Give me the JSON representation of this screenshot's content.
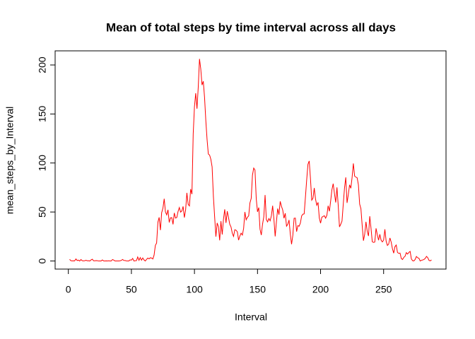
{
  "chart_data": {
    "type": "line",
    "title": "Mean of total steps by time interval across all days",
    "x_label": "Interval",
    "y_label": "mean_steps_by_Interval",
    "color": "#ff0000",
    "x": [
      1,
      2,
      3,
      4,
      5,
      6,
      7,
      8,
      9,
      10,
      11,
      12,
      13,
      14,
      15,
      16,
      17,
      18,
      19,
      20,
      21,
      22,
      23,
      24,
      25,
      26,
      27,
      28,
      29,
      30,
      31,
      32,
      33,
      34,
      35,
      36,
      37,
      38,
      39,
      40,
      41,
      42,
      43,
      44,
      45,
      46,
      47,
      48,
      49,
      50,
      51,
      52,
      53,
      54,
      55,
      56,
      57,
      58,
      59,
      60,
      61,
      62,
      63,
      64,
      65,
      66,
      67,
      68,
      69,
      70,
      71,
      72,
      73,
      74,
      75,
      76,
      77,
      78,
      79,
      80,
      81,
      82,
      83,
      84,
      85,
      86,
      87,
      88,
      89,
      90,
      91,
      92,
      93,
      94,
      95,
      96,
      97,
      98,
      99,
      100,
      101,
      102,
      103,
      104,
      105,
      106,
      107,
      108,
      109,
      110,
      111,
      112,
      113,
      114,
      115,
      116,
      117,
      118,
      119,
      120,
      121,
      122,
      123,
      124,
      125,
      126,
      127,
      128,
      129,
      130,
      131,
      132,
      133,
      134,
      135,
      136,
      137,
      138,
      139,
      140,
      141,
      142,
      143,
      144,
      145,
      146,
      147,
      148,
      149,
      150,
      151,
      152,
      153,
      154,
      155,
      156,
      157,
      158,
      159,
      160,
      161,
      162,
      163,
      164,
      165,
      166,
      167,
      168,
      169,
      170,
      171,
      172,
      173,
      174,
      175,
      176,
      177,
      178,
      179,
      180,
      181,
      182,
      183,
      184,
      185,
      186,
      187,
      188,
      189,
      190,
      191,
      192,
      193,
      194,
      195,
      196,
      197,
      198,
      199,
      200,
      201,
      202,
      203,
      204,
      205,
      206,
      207,
      208,
      209,
      210,
      211,
      212,
      213,
      214,
      215,
      216,
      217,
      218,
      219,
      220,
      221,
      222,
      223,
      224,
      225,
      226,
      227,
      228,
      229,
      230,
      231,
      232,
      233,
      234,
      235,
      236,
      237,
      238,
      239,
      240,
      241,
      242,
      243,
      244,
      245,
      246,
      247,
      248,
      249,
      250,
      251,
      252,
      253,
      254,
      255,
      256,
      257,
      258,
      259,
      260,
      261,
      262,
      263,
      264,
      265,
      266,
      267,
      268,
      269,
      270,
      271,
      272,
      273,
      274,
      275,
      276,
      277,
      278,
      279,
      280,
      281,
      282,
      283,
      284,
      285,
      286,
      287,
      288
    ],
    "values": [
      1.7,
      0.3,
      0.1,
      0.2,
      0.1,
      2.1,
      0.5,
      0.9,
      0,
      1.5,
      0.3,
      0.1,
      0.3,
      0.7,
      0.2,
      0.3,
      0,
      1.1,
      1.8,
      0.2,
      0.2,
      0.4,
      0.3,
      0,
      0,
      0,
      1.1,
      0,
      0,
      0.1,
      0,
      0.2,
      0,
      0,
      1.5,
      0.9,
      0,
      0,
      0,
      0,
      0.2,
      0.6,
      1.6,
      0.6,
      0.5,
      0.1,
      0,
      0,
      1.2,
      0.9,
      2.6,
      0,
      0.3,
      0.4,
      4.1,
      0.7,
      3.5,
      0.8,
      3.1,
      1.1,
      0,
      1.6,
      3,
      2.2,
      3.3,
      3,
      2.1,
      6.1,
      16,
      18.3,
      39.5,
      44.5,
      31.5,
      49.3,
      53.8,
      63.5,
      50,
      47.1,
      52.2,
      39.3,
      44,
      44.2,
      37.4,
      49,
      43.8,
      44.4,
      50.5,
      54.5,
      49.9,
      51,
      55.7,
      44.3,
      52.3,
      69.5,
      57.8,
      56.2,
      73.4,
      68.2,
      129.4,
      157.5,
      171.2,
      155.4,
      177.3,
      206.2,
      195.9,
      179.6,
      183.4,
      167,
      143.5,
      124,
      109.1,
      108.1,
      103.7,
      96,
      66.2,
      45.2,
      24.8,
      38.8,
      35,
      21.1,
      40.6,
      27,
      42.4,
      52.7,
      38.9,
      50.8,
      44.3,
      37.4,
      34.7,
      28.3,
      25.1,
      31.9,
      31.4,
      29.7,
      21.3,
      25.5,
      28.4,
      26.5,
      33.4,
      50,
      42,
      44.6,
      46,
      59.2,
      63.9,
      87.7,
      94.8,
      92.8,
      63.4,
      50.2,
      54.5,
      32.4,
      26.5,
      37.7,
      45.1,
      67.3,
      42.3,
      39.9,
      43.3,
      41,
      46.2,
      56.4,
      42.8,
      25.1,
      40,
      53.5,
      47.3,
      60.8,
      55.8,
      52,
      43.6,
      48.7,
      35.5,
      37.5,
      41.8,
      27.5,
      17.1,
      26.1,
      43.6,
      43.8,
      30,
      36.1,
      35.5,
      38.8,
      46,
      47.8,
      48.1,
      65.3,
      82.9,
      98.7,
      102.1,
      84,
      62.1,
      64.1,
      74.5,
      63.2,
      56.9,
      59.8,
      43.9,
      38.6,
      44.7,
      45.5,
      46.2,
      43.7,
      46.6,
      56.3,
      50.7,
      61.2,
      72.7,
      78.9,
      68.9,
      59.7,
      75.1,
      56.5,
      34.8,
      37.5,
      40.7,
      58,
      74.7,
      85.3,
      59.3,
      67.8,
      77.7,
      74.2,
      85.3,
      99.5,
      86.6,
      85.6,
      84.9,
      77.8,
      58,
      53.4,
      36.3,
      20.7,
      27.4,
      40,
      30.2,
      25.5,
      45.7,
      33.5,
      19.6,
      19,
      19.3,
      33.3,
      26.8,
      21.2,
      27.3,
      21.3,
      19.5,
      21.3,
      32.3,
      20.2,
      15.9,
      17.2,
      23.5,
      19.2,
      12.5,
      8,
      14.7,
      16.3,
      8.7,
      7.8,
      8.1,
      2.6,
      1.5,
      3.7,
      4.8,
      8.5,
      7.1,
      8.7,
      9.8,
      2.2,
      0.3,
      0.1,
      1.6,
      4.6,
      3.3,
      2.8,
      0,
      0.8,
      1,
      1.6,
      2.6,
      4.7,
      3.3,
      0.6,
      0.2,
      1.1
    ],
    "xlim": [
      -10.48,
      299.48
    ],
    "xticks": [
      0,
      50,
      100,
      150,
      200,
      250
    ],
    "ylim": [
      -8.25,
      214.42
    ],
    "yticks": [
      0,
      50,
      100,
      150,
      200
    ]
  }
}
